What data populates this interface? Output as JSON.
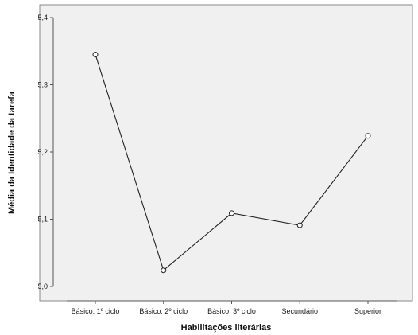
{
  "chart_data": {
    "type": "line",
    "title": "",
    "xlabel": "Habilitações literárias",
    "ylabel": "Média da Identidade da tarefa",
    "categories": [
      "Básico: 1º ciclo",
      "Básico: 2º ciclo",
      "Básico: 3º ciclo",
      "Secundário",
      "Superior"
    ],
    "series": [
      {
        "values": [
          5.345,
          5.024,
          5.109,
          5.091,
          5.224
        ]
      }
    ],
    "ylim": [
      5.0,
      5.4
    ],
    "yticks": [
      "5,0",
      "5,1",
      "5,2",
      "5,3",
      "5,4"
    ],
    "grid": false,
    "legend": "none",
    "colors": {
      "plot_background": "#f0f0f0",
      "line": "#222222",
      "marker_fill": "#ffffff",
      "axis": "#555555"
    }
  }
}
